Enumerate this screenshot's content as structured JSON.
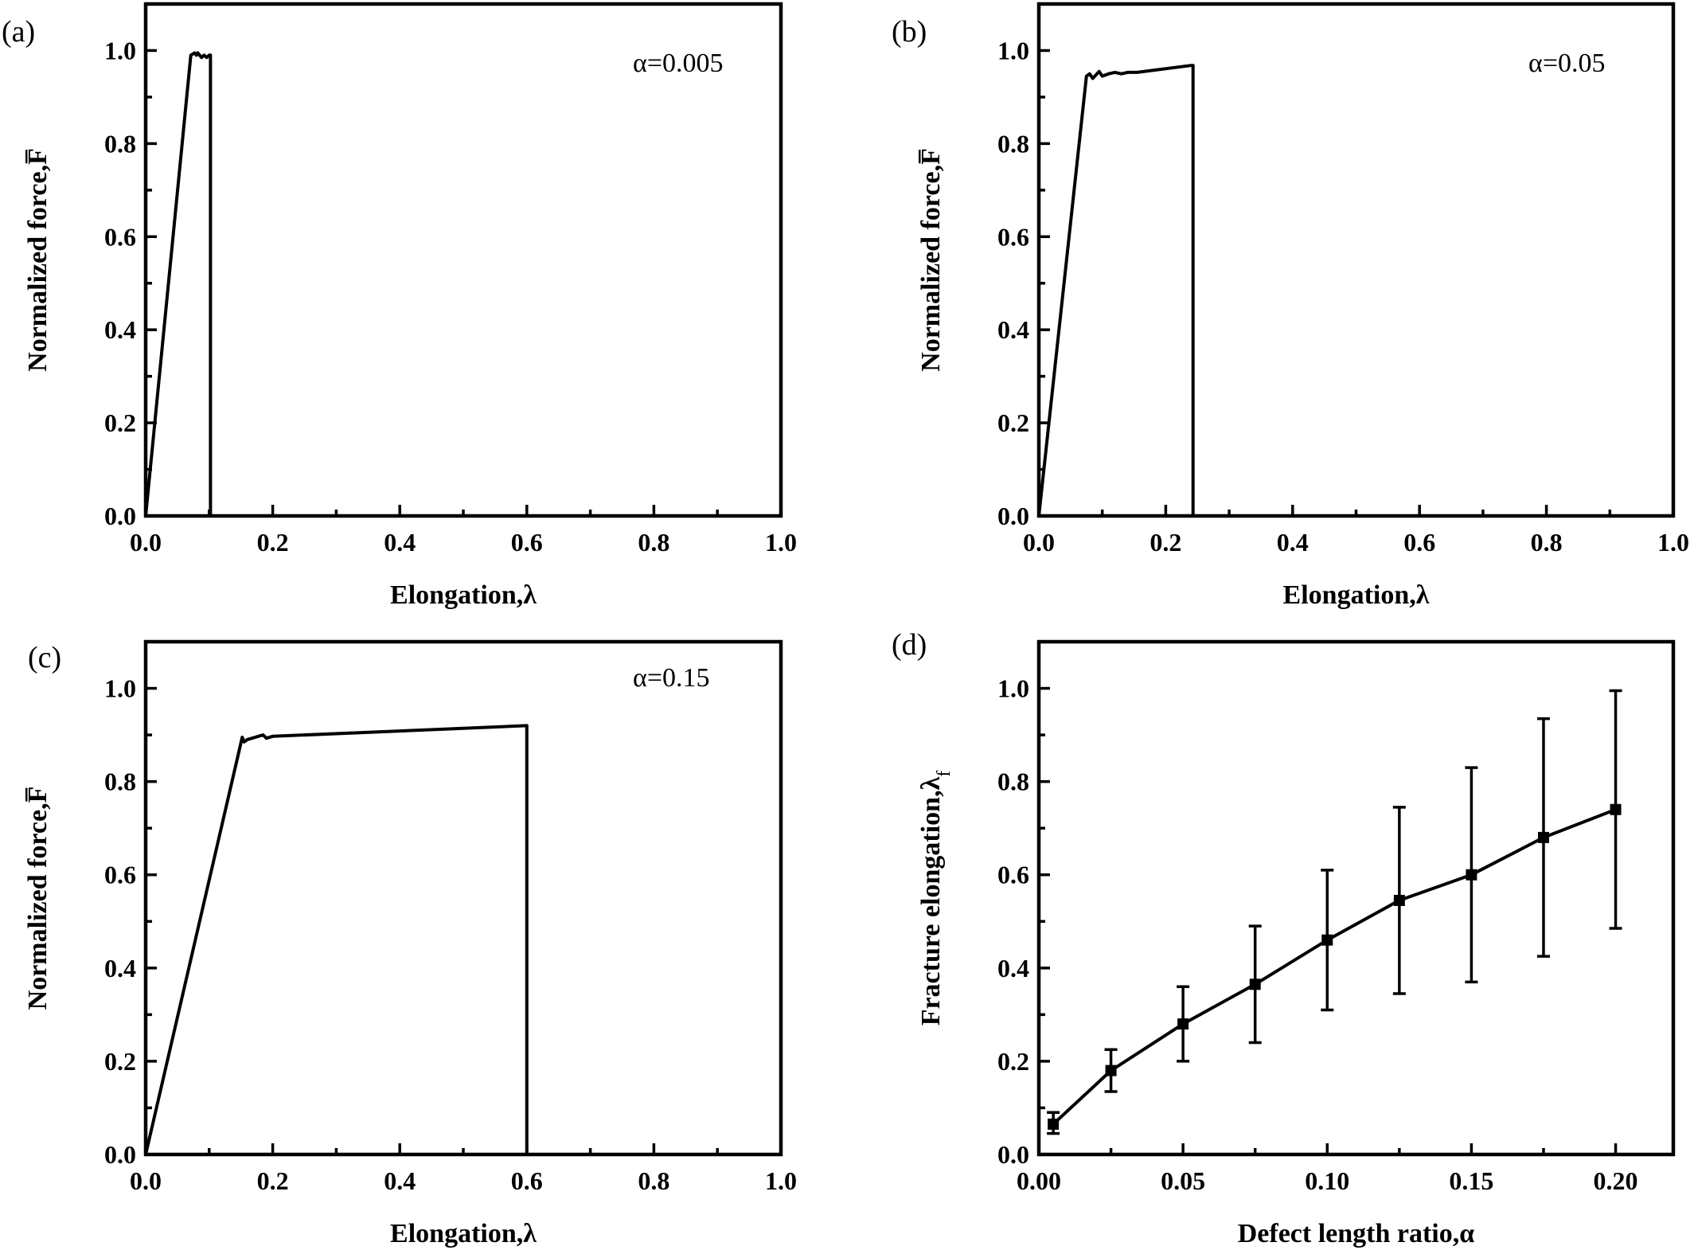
{
  "chart_data": [
    {
      "type": "line",
      "panel_label": "(a)",
      "annotation": "α=0.005",
      "xlabel": "Elongation,λ",
      "ylabel": "Normalized force,F̅",
      "xlim": [
        0,
        1.0
      ],
      "ylim": [
        0,
        1.1
      ],
      "xticks": [
        0.0,
        0.2,
        0.4,
        0.6,
        0.8,
        1.0
      ],
      "xtick_labels": [
        "0.0",
        "0.2",
        "0.4",
        "0.6",
        "0.8",
        "1.0"
      ],
      "yticks": [
        0.0,
        0.2,
        0.4,
        0.6,
        0.8,
        1.0
      ],
      "ytick_labels": [
        "0.0",
        "0.2",
        "0.4",
        "0.6",
        "0.8",
        "1.0"
      ],
      "series": [
        {
          "x": [
            0,
            0.071,
            0.077,
            0.08,
            0.082,
            0.085,
            0.088,
            0.092,
            0.096,
            0.1,
            0.102,
            0.102
          ],
          "y": [
            0,
            0.99,
            0.995,
            0.99,
            0.995,
            0.99,
            0.985,
            0.99,
            0.985,
            0.99,
            0.99,
            0
          ]
        }
      ]
    },
    {
      "type": "line",
      "panel_label": "(b)",
      "annotation": "α=0.05",
      "xlabel": "Elongation,λ",
      "ylabel": "Normalized force,F̅",
      "xlim": [
        0,
        1.0
      ],
      "ylim": [
        0,
        1.1
      ],
      "xticks": [
        0.0,
        0.2,
        0.4,
        0.6,
        0.8,
        1.0
      ],
      "xtick_labels": [
        "0.0",
        "0.2",
        "0.4",
        "0.6",
        "0.8",
        "1.0"
      ],
      "yticks": [
        0.0,
        0.2,
        0.4,
        0.6,
        0.8,
        1.0
      ],
      "ytick_labels": [
        "0.0",
        "0.2",
        "0.4",
        "0.6",
        "0.8",
        "1.0"
      ],
      "series": [
        {
          "x": [
            0,
            0.075,
            0.08,
            0.085,
            0.095,
            0.1,
            0.11,
            0.12,
            0.13,
            0.14,
            0.155,
            0.24,
            0.243,
            0.243
          ],
          "y": [
            0,
            0.945,
            0.95,
            0.94,
            0.955,
            0.945,
            0.95,
            0.953,
            0.95,
            0.953,
            0.953,
            0.968,
            0.968,
            0
          ]
        }
      ]
    },
    {
      "type": "line",
      "panel_label": "(c)",
      "annotation": "α=0.15",
      "xlabel": "Elongation,λ",
      "ylabel": "Normalized force,F̅",
      "xlim": [
        0,
        1.0
      ],
      "ylim": [
        0,
        1.1
      ],
      "xticks": [
        0.0,
        0.2,
        0.4,
        0.6,
        0.8,
        1.0
      ],
      "xtick_labels": [
        "0.0",
        "0.2",
        "0.4",
        "0.6",
        "0.8",
        "1.0"
      ],
      "yticks": [
        0.0,
        0.2,
        0.4,
        0.6,
        0.8,
        1.0
      ],
      "ytick_labels": [
        "0.0",
        "0.2",
        "0.4",
        "0.6",
        "0.8",
        "1.0"
      ],
      "series": [
        {
          "x": [
            0,
            0.152,
            0.155,
            0.16,
            0.185,
            0.19,
            0.2,
            0.6,
            0.6
          ],
          "y": [
            0,
            0.895,
            0.885,
            0.89,
            0.9,
            0.893,
            0.897,
            0.92,
            0
          ]
        }
      ]
    },
    {
      "type": "line",
      "panel_label": "(d)",
      "xlabel": "Defect length ratio,α",
      "ylabel": "Fracture elongation,λ",
      "ylabel_subscript": "f",
      "xlim": [
        0,
        0.22
      ],
      "ylim": [
        0,
        1.1
      ],
      "xticks": [
        0.0,
        0.05,
        0.1,
        0.15,
        0.2
      ],
      "xtick_labels": [
        "0.00",
        "0.05",
        "0.10",
        "0.15",
        "0.20"
      ],
      "yticks": [
        0.0,
        0.2,
        0.4,
        0.6,
        0.8,
        1.0
      ],
      "ytick_labels": [
        "0.0",
        "0.2",
        "0.4",
        "0.6",
        "0.8",
        "1.0"
      ],
      "series": [
        {
          "x": [
            0.005,
            0.025,
            0.05,
            0.075,
            0.1,
            0.125,
            0.15,
            0.175,
            0.2
          ],
          "y": [
            0.065,
            0.18,
            0.28,
            0.365,
            0.46,
            0.545,
            0.6,
            0.68,
            0.74
          ],
          "err_low": [
            0.045,
            0.135,
            0.2,
            0.24,
            0.31,
            0.345,
            0.37,
            0.425,
            0.485
          ],
          "err_high": [
            0.09,
            0.225,
            0.36,
            0.49,
            0.61,
            0.745,
            0.83,
            0.935,
            0.995
          ],
          "marker": "square"
        }
      ]
    }
  ]
}
